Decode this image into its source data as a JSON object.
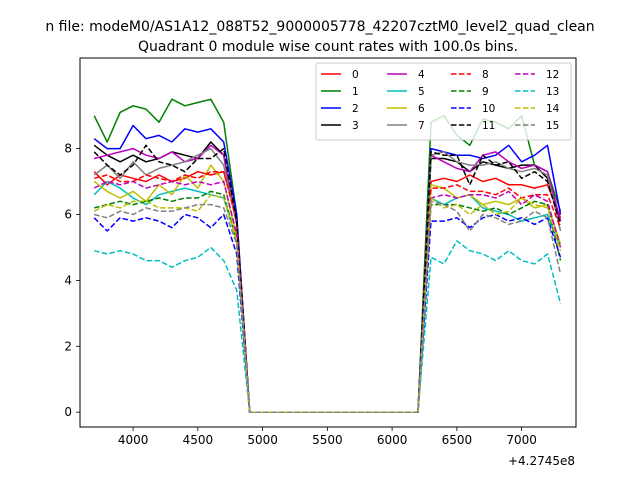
{
  "figure": {
    "suptitle": "n file: modeM0/AS1A12_088T52_9000005778_42207cztM0_level2_quad_clean",
    "title": "Quadrant 0 module wise count rates with 100.0s bins.",
    "offset_label": "+4.2745e8"
  },
  "chart_data": {
    "type": "line",
    "title": "Quadrant 0 module wise count rates with 100.0s bins.",
    "xlabel": "",
    "ylabel": "",
    "x_offset": 427450000,
    "xlim": [
      3590,
      7420
    ],
    "ylim": [
      -0.45,
      10.75
    ],
    "xticks": [
      4000,
      4500,
      5000,
      5500,
      6000,
      6500,
      7000
    ],
    "yticks": [
      0,
      2,
      4,
      6,
      8
    ],
    "grid": false,
    "legend": {
      "location": "upper right",
      "columns": 4
    },
    "x": [
      3700,
      3800,
      3900,
      4000,
      4100,
      4200,
      4300,
      4400,
      4500,
      4600,
      4700,
      4800,
      4900,
      5000,
      5100,
      5200,
      5300,
      5400,
      5500,
      5600,
      5700,
      5800,
      5900,
      6000,
      6100,
      6200,
      6300,
      6400,
      6500,
      6600,
      6700,
      6800,
      6900,
      7000,
      7100,
      7200,
      7300
    ],
    "series": [
      {
        "name": "0",
        "color": "#ff0000",
        "dash": "solid",
        "values": [
          7.3,
          6.9,
          7.2,
          7.1,
          7.0,
          7.2,
          7.0,
          7.1,
          7.3,
          7.2,
          7.3,
          5.9,
          0,
          0,
          0,
          0,
          0,
          0,
          0,
          0,
          0,
          0,
          0,
          0,
          0,
          0,
          7.0,
          7.1,
          7.0,
          7.2,
          7.0,
          7.1,
          6.9,
          6.9,
          6.8,
          6.9,
          5.9
        ]
      },
      {
        "name": "1",
        "color": "#008000",
        "dash": "solid",
        "values": [
          9.0,
          8.2,
          9.1,
          9.3,
          9.2,
          8.8,
          9.5,
          9.3,
          9.4,
          9.5,
          8.8,
          6.0,
          0,
          0,
          0,
          0,
          0,
          0,
          0,
          0,
          0,
          0,
          0,
          0,
          0,
          0,
          8.8,
          9.0,
          8.4,
          8.1,
          8.9,
          8.8,
          8.6,
          9.0,
          7.5,
          7.3,
          6.1
        ]
      },
      {
        "name": "2",
        "color": "#0000ff",
        "dash": "solid",
        "values": [
          8.3,
          8.0,
          8.0,
          8.7,
          8.3,
          8.4,
          8.2,
          8.6,
          8.5,
          8.6,
          8.2,
          6.0,
          0,
          0,
          0,
          0,
          0,
          0,
          0,
          0,
          0,
          0,
          0,
          0,
          0,
          0,
          8.0,
          7.9,
          7.8,
          7.8,
          7.7,
          7.8,
          8.1,
          7.6,
          7.8,
          8.1,
          6.0
        ]
      },
      {
        "name": "3",
        "color": "#000000",
        "dash": "solid",
        "values": [
          8.1,
          7.8,
          7.6,
          7.8,
          7.6,
          7.7,
          7.9,
          7.8,
          7.7,
          8.2,
          7.8,
          5.7,
          0,
          0,
          0,
          0,
          0,
          0,
          0,
          0,
          0,
          0,
          0,
          0,
          0,
          0,
          7.7,
          7.7,
          7.6,
          7.3,
          7.6,
          7.5,
          7.4,
          7.5,
          7.5,
          7.1,
          5.8
        ]
      },
      {
        "name": "4",
        "color": "#bf00bf",
        "dash": "solid",
        "values": [
          7.7,
          7.8,
          7.9,
          8.0,
          7.8,
          7.7,
          7.9,
          7.6,
          7.7,
          8.1,
          7.8,
          5.7,
          0,
          0,
          0,
          0,
          0,
          0,
          0,
          0,
          0,
          0,
          0,
          0,
          0,
          0,
          7.8,
          7.6,
          7.4,
          7.3,
          7.8,
          7.9,
          7.6,
          7.4,
          7.5,
          7.3,
          5.8
        ]
      },
      {
        "name": "5",
        "color": "#00bfbf",
        "dash": "solid",
        "values": [
          6.6,
          7.0,
          6.8,
          6.5,
          6.3,
          6.6,
          6.7,
          6.8,
          6.7,
          6.6,
          6.5,
          5.2,
          0,
          0,
          0,
          0,
          0,
          0,
          0,
          0,
          0,
          0,
          0,
          0,
          0,
          0,
          6.5,
          6.3,
          6.5,
          6.6,
          6.2,
          6.1,
          6.0,
          5.8,
          5.9,
          6.0,
          5.0
        ]
      },
      {
        "name": "6",
        "color": "#bfbf00",
        "dash": "solid",
        "values": [
          7.0,
          6.7,
          6.5,
          6.7,
          6.4,
          6.9,
          6.6,
          7.2,
          6.8,
          7.5,
          7.0,
          5.3,
          0,
          0,
          0,
          0,
          0,
          0,
          0,
          0,
          0,
          0,
          0,
          0,
          0,
          0,
          6.9,
          6.8,
          6.5,
          6.6,
          6.3,
          6.4,
          6.3,
          6.5,
          6.2,
          6.3,
          5.1
        ]
      },
      {
        "name": "7",
        "color": "#808080",
        "dash": "solid",
        "values": [
          7.2,
          7.5,
          7.1,
          7.6,
          7.2,
          7.4,
          7.5,
          7.6,
          7.8,
          8.0,
          7.5,
          5.7,
          0,
          0,
          0,
          0,
          0,
          0,
          0,
          0,
          0,
          0,
          0,
          0,
          0,
          0,
          7.8,
          7.9,
          7.6,
          7.5,
          7.5,
          7.6,
          7.4,
          7.3,
          7.4,
          7.2,
          5.5
        ]
      },
      {
        "name": "8",
        "color": "#ff0000",
        "dash": "dashed",
        "values": [
          7.1,
          7.2,
          7.0,
          7.0,
          7.2,
          7.1,
          7.0,
          7.2,
          7.1,
          7.3,
          7.3,
          5.8,
          0,
          0,
          0,
          0,
          0,
          0,
          0,
          0,
          0,
          0,
          0,
          0,
          0,
          0,
          6.8,
          6.8,
          6.9,
          6.7,
          6.7,
          6.6,
          6.8,
          6.5,
          6.6,
          6.6,
          5.6
        ]
      },
      {
        "name": "9",
        "color": "#008000",
        "dash": "dashed",
        "values": [
          6.2,
          6.3,
          6.4,
          6.3,
          6.4,
          6.5,
          6.4,
          6.5,
          6.5,
          6.7,
          6.6,
          5.2,
          0,
          0,
          0,
          0,
          0,
          0,
          0,
          0,
          0,
          0,
          0,
          0,
          0,
          0,
          6.3,
          6.3,
          6.3,
          6.2,
          6.1,
          6.2,
          6.0,
          6.2,
          6.4,
          6.3,
          4.6
        ]
      },
      {
        "name": "10",
        "color": "#0000ff",
        "dash": "dashed",
        "values": [
          5.9,
          5.5,
          5.9,
          5.8,
          5.9,
          5.8,
          5.6,
          6.0,
          5.9,
          5.6,
          6.0,
          4.8,
          0,
          0,
          0,
          0,
          0,
          0,
          0,
          0,
          0,
          0,
          0,
          0,
          0,
          0,
          5.8,
          5.8,
          5.9,
          5.6,
          5.9,
          6.0,
          5.8,
          5.9,
          5.7,
          5.9,
          4.7
        ]
      },
      {
        "name": "11",
        "color": "#000000",
        "dash": "dashed",
        "values": [
          7.9,
          7.5,
          7.2,
          7.5,
          8.1,
          7.6,
          7.5,
          7.3,
          7.7,
          7.7,
          8.0,
          5.8,
          0,
          0,
          0,
          0,
          0,
          0,
          0,
          0,
          0,
          0,
          0,
          0,
          0,
          0,
          7.9,
          7.8,
          7.8,
          6.9,
          7.8,
          7.5,
          7.6,
          7.1,
          7.3,
          7.0,
          5.7
        ]
      },
      {
        "name": "12",
        "color": "#bf00bf",
        "dash": "dashed",
        "values": [
          6.8,
          7.0,
          6.9,
          7.0,
          6.8,
          6.9,
          7.0,
          6.9,
          7.0,
          6.9,
          7.0,
          5.4,
          0,
          0,
          0,
          0,
          0,
          0,
          0,
          0,
          0,
          0,
          0,
          0,
          0,
          0,
          6.5,
          6.6,
          6.5,
          6.6,
          6.6,
          6.5,
          6.7,
          6.3,
          6.6,
          6.4,
          5.0
        ]
      },
      {
        "name": "13",
        "color": "#00bfbf",
        "dash": "dashed",
        "values": [
          4.9,
          4.8,
          4.9,
          4.8,
          4.6,
          4.6,
          4.4,
          4.6,
          4.7,
          5.0,
          4.6,
          3.7,
          0,
          0,
          0,
          0,
          0,
          0,
          0,
          0,
          0,
          0,
          0,
          0,
          0,
          0,
          4.7,
          4.5,
          5.2,
          4.9,
          4.8,
          4.6,
          4.9,
          4.6,
          4.5,
          4.8,
          3.3
        ]
      },
      {
        "name": "14",
        "color": "#bfbf00",
        "dash": "dashed",
        "values": [
          6.1,
          6.3,
          6.2,
          6.4,
          6.4,
          6.2,
          6.2,
          6.2,
          6.1,
          6.6,
          6.5,
          5.2,
          0,
          0,
          0,
          0,
          0,
          0,
          0,
          0,
          0,
          0,
          0,
          0,
          0,
          0,
          6.5,
          6.2,
          6.3,
          6.0,
          6.3,
          6.0,
          6.1,
          6.5,
          6.3,
          6.2,
          4.9
        ]
      },
      {
        "name": "15",
        "color": "#808080",
        "dash": "dashed",
        "values": [
          6.0,
          5.9,
          6.1,
          6.0,
          6.2,
          6.1,
          6.1,
          6.2,
          6.3,
          6.3,
          6.2,
          5.1,
          0,
          0,
          0,
          0,
          0,
          0,
          0,
          0,
          0,
          0,
          0,
          0,
          0,
          0,
          6.4,
          6.3,
          6.1,
          5.5,
          6.0,
          5.9,
          5.7,
          5.8,
          6.1,
          5.9,
          4.2
        ]
      }
    ]
  }
}
